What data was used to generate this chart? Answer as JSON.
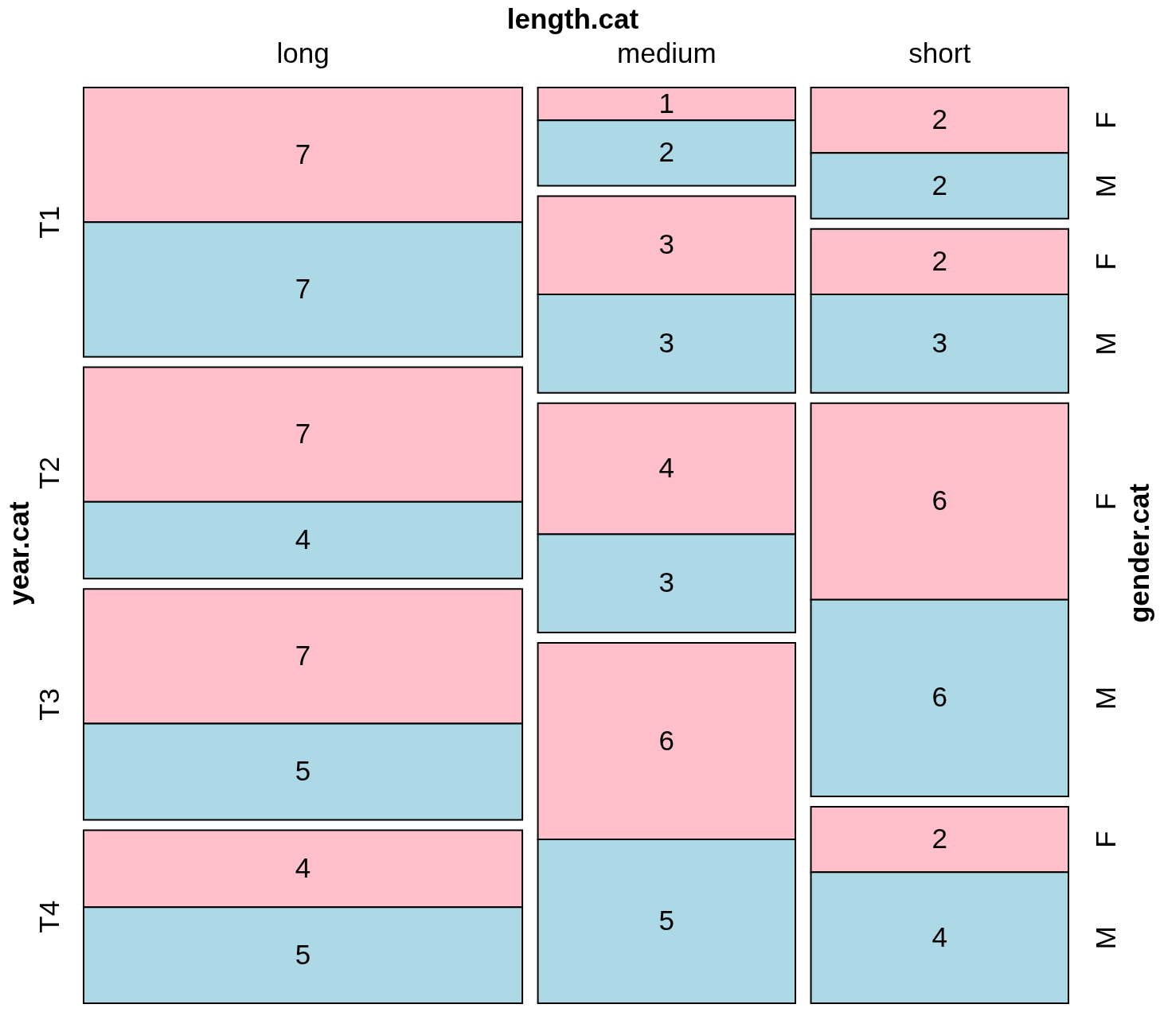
{
  "chart_data": {
    "type": "other",
    "xlabel": "length.cat",
    "ylabel": "year.cat",
    "y2label": "gender.cat",
    "categories": [
      "long",
      "medium",
      "short"
    ],
    "y_categories": [
      "T1",
      "T2",
      "T3",
      "T4"
    ],
    "series": [
      {
        "name": "F",
        "color": "#ffc0cb",
        "values": [
          7,
          1,
          2
        ]
      },
      {
        "name": "M",
        "color": "#add8e6",
        "values": [
          7,
          2,
          2
        ]
      },
      {
        "name": "F",
        "color": "#ffc0cb",
        "values": [
          7,
          3,
          2
        ]
      },
      {
        "name": "M",
        "color": "#add8e6",
        "values": [
          4,
          3,
          3
        ]
      },
      {
        "name": "F",
        "color": "#ffc0cb",
        "values": [
          7,
          4,
          6
        ]
      },
      {
        "name": "M",
        "color": "#add8e6",
        "values": [
          5,
          3,
          6
        ]
      },
      {
        "name": "F",
        "color": "#ffc0cb",
        "values": [
          4,
          6,
          2
        ]
      },
      {
        "name": "M",
        "color": "#add8e6",
        "values": [
          5,
          5,
          4
        ]
      }
    ],
    "data_labels": true
  }
}
